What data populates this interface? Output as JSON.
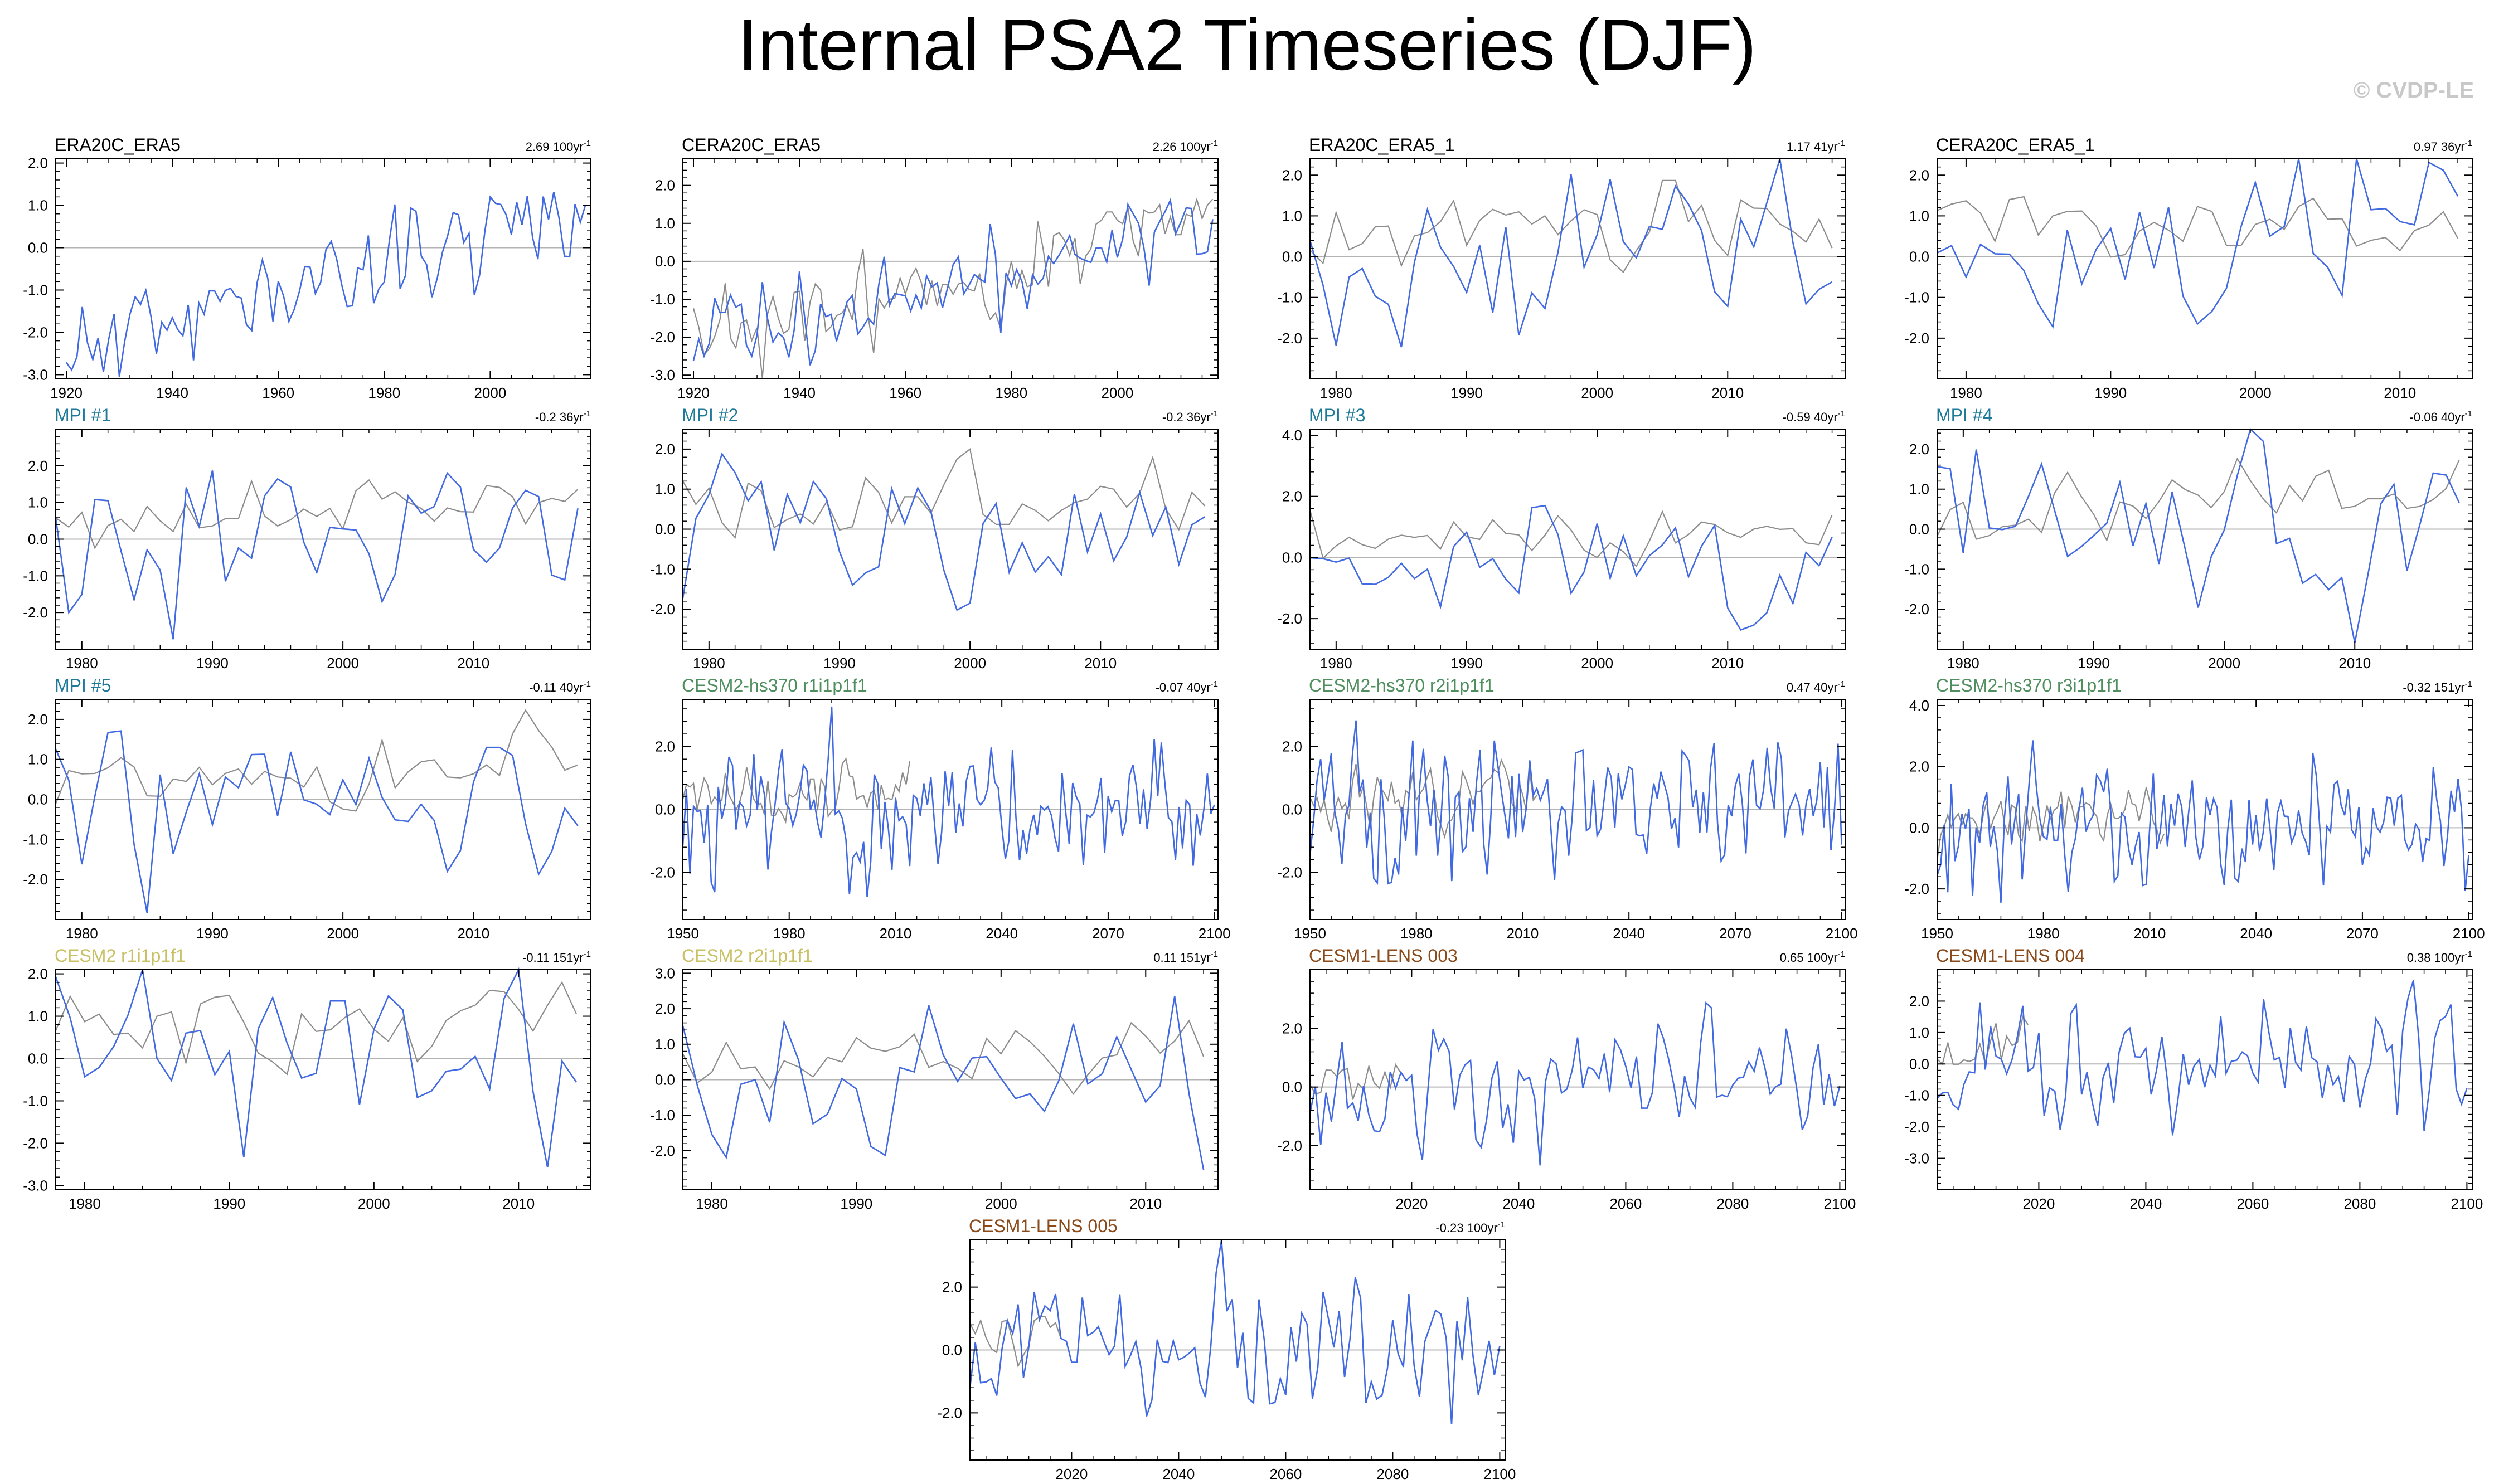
{
  "title": "Internal PSA2 Timeseries (DJF)",
  "watermark": "© CVDP-LE",
  "colors": {
    "member_line": "#4169e1",
    "obs_line": "#8c8c8c",
    "zero_line": "#b4b4b4",
    "obs_title": "#000000",
    "mpi_title": "#1f7a9a",
    "cesm2hs_title": "#4f8f5e",
    "cesm2_title": "#c8c063",
    "lens_title": "#8b4a1a"
  },
  "chart_data": [
    {
      "type": "line",
      "name": "ERA20C_ERA5",
      "title_color": "obs_title",
      "trend": "2.69 100yr",
      "xlim": [
        1918,
        2019
      ],
      "ylim": [
        -3.1,
        2.1
      ],
      "xticks": [
        1920,
        1940,
        1960,
        1980,
        2000
      ],
      "yticks": [
        -3.0,
        -2.0,
        -1.0,
        0.0,
        1.0,
        2.0
      ],
      "gray": null,
      "series_seed": 11,
      "blue_x": [
        1920,
        2018
      ],
      "blue_trend": [
        -2.5,
        1.1
      ],
      "blue_amp": 0.55
    },
    {
      "type": "line",
      "name": "CERA20C_ERA5",
      "title_color": "obs_title",
      "trend": "2.26 100yr",
      "xlim": [
        1918,
        2019
      ],
      "ylim": [
        -3.1,
        2.7
      ],
      "xticks": [
        1920,
        1940,
        1960,
        1980,
        2000
      ],
      "yticks": [
        -3.0,
        -2.0,
        -1.0,
        0.0,
        1.0,
        2.0
      ],
      "gray_x": [
        1920,
        2018
      ],
      "gray_trend": [
        -2.3,
        1.3
      ],
      "gray_amp": 0.55,
      "gray_seed": 23,
      "series_seed": 12,
      "blue_x": [
        1920,
        2018
      ],
      "blue_trend": [
        -2.2,
        1.1
      ],
      "blue_amp": 0.6
    },
    {
      "type": "line",
      "name": "ERA20C_ERA5_1",
      "title_color": "obs_title",
      "trend": "1.17 41yr",
      "xlim": [
        1978,
        2019
      ],
      "ylim": [
        -3.0,
        2.4
      ],
      "xticks": [
        1980,
        1990,
        2000,
        2010
      ],
      "yticks": [
        -2.0,
        -1.0,
        0.0,
        1.0,
        2.0
      ],
      "gray_x": [
        1978,
        2018
      ],
      "gray_trend": [
        0.4,
        1.0
      ],
      "gray_amp": 0.45,
      "gray_seed": 31,
      "series_seed": 13,
      "blue_x": [
        1978,
        2018
      ],
      "blue_trend": [
        -0.6,
        0.7
      ],
      "blue_amp": 1.0
    },
    {
      "type": "line",
      "name": "CERA20C_ERA5_1",
      "title_color": "obs_title",
      "trend": "0.97 36yr",
      "xlim": [
        1978,
        2015
      ],
      "ylim": [
        -3.0,
        2.4
      ],
      "xticks": [
        1980,
        1990,
        2000,
        2010
      ],
      "yticks": [
        -2.0,
        -1.0,
        0.0,
        1.0,
        2.0
      ],
      "gray_x": [
        1978,
        2014
      ],
      "gray_trend": [
        0.4,
        1.0
      ],
      "gray_amp": 0.45,
      "gray_seed": 37,
      "series_seed": 14,
      "blue_x": [
        1978,
        2014
      ],
      "blue_trend": [
        -0.6,
        0.6
      ],
      "blue_amp": 1.0
    },
    {
      "type": "line",
      "name": "MPI #1",
      "title_color": "mpi_title",
      "trend": "-0.2 36yr",
      "xlim": [
        1978,
        2019
      ],
      "ylim": [
        -3.0,
        3.0
      ],
      "xticks": [
        1980,
        1990,
        2000,
        2010
      ],
      "yticks": [
        -2.0,
        -1.0,
        0.0,
        1.0,
        2.0
      ],
      "gray_x": [
        1978,
        2018
      ],
      "gray_trend": [
        0.4,
        1.0
      ],
      "gray_amp": 0.45,
      "gray_seed": 41,
      "series_seed": 15,
      "blue_x": [
        1978,
        2018
      ],
      "blue_trend": [
        0.2,
        -0.1
      ],
      "blue_amp": 1.0
    },
    {
      "type": "line",
      "name": "MPI #2",
      "title_color": "mpi_title",
      "trend": "-0.2 36yr",
      "xlim": [
        1978,
        2019
      ],
      "ylim": [
        -3.0,
        2.5
      ],
      "xticks": [
        1980,
        1990,
        2000,
        2010
      ],
      "yticks": [
        -2.0,
        -1.0,
        0.0,
        1.0,
        2.0
      ],
      "gray_x": [
        1978,
        2018
      ],
      "gray_trend": [
        0.4,
        1.0
      ],
      "gray_amp": 0.45,
      "gray_seed": 43,
      "series_seed": 16,
      "blue_x": [
        1978,
        2018
      ],
      "blue_trend": [
        0.2,
        -0.1
      ],
      "blue_amp": 1.0
    },
    {
      "type": "line",
      "name": "MPI #3",
      "title_color": "mpi_title",
      "trend": "-0.59 40yr",
      "xlim": [
        1978,
        2019
      ],
      "ylim": [
        -3.0,
        4.2
      ],
      "xticks": [
        1980,
        1990,
        2000,
        2010
      ],
      "yticks": [
        -2.0,
        0.0,
        2.0,
        4.0
      ],
      "gray_x": [
        1978,
        2018
      ],
      "gray_trend": [
        0.4,
        1.0
      ],
      "gray_amp": 0.45,
      "gray_seed": 47,
      "series_seed": 17,
      "blue_x": [
        1978,
        2018
      ],
      "blue_trend": [
        0.2,
        -0.4
      ],
      "blue_amp": 0.9
    },
    {
      "type": "line",
      "name": "MPI #4",
      "title_color": "mpi_title",
      "trend": "-0.06 40yr",
      "xlim": [
        1978,
        2019
      ],
      "ylim": [
        -3.0,
        2.5
      ],
      "xticks": [
        1980,
        1990,
        2000,
        2010
      ],
      "yticks": [
        -2.0,
        -1.0,
        0.0,
        1.0,
        2.0
      ],
      "gray_x": [
        1978,
        2018
      ],
      "gray_trend": [
        0.4,
        1.0
      ],
      "gray_amp": 0.45,
      "gray_seed": 53,
      "series_seed": 18,
      "blue_x": [
        1978,
        2018
      ],
      "blue_trend": [
        0.1,
        0.0
      ],
      "blue_amp": 1.0
    },
    {
      "type": "line",
      "name": "MPI #5",
      "title_color": "mpi_title",
      "trend": "-0.11 40yr",
      "xlim": [
        1978,
        2019
      ],
      "ylim": [
        -3.0,
        2.5
      ],
      "xticks": [
        1980,
        1990,
        2000,
        2010
      ],
      "yticks": [
        -2.0,
        -1.0,
        0.0,
        1.0,
        2.0
      ],
      "gray_x": [
        1978,
        2018
      ],
      "gray_trend": [
        0.4,
        1.0
      ],
      "gray_amp": 0.45,
      "gray_seed": 59,
      "series_seed": 19,
      "blue_x": [
        1978,
        2018
      ],
      "blue_trend": [
        0.1,
        -0.1
      ],
      "blue_amp": 1.0
    },
    {
      "type": "line",
      "name": "CESM2-hs370 r1i1p1f1",
      "title_color": "cesm2hs_title",
      "trend": "-0.07 40yr",
      "xlim": [
        1950,
        2101
      ],
      "ylim": [
        -3.5,
        3.5
      ],
      "xticks": [
        1950,
        1980,
        2010,
        2040,
        2070,
        2100
      ],
      "yticks": [
        -2.0,
        0.0,
        2.0
      ],
      "gray_x": [
        1950,
        2014
      ],
      "gray_trend": [
        0.2,
        0.6
      ],
      "gray_amp": 0.45,
      "gray_seed": 61,
      "series_seed": 20,
      "blue_x": [
        1950,
        2100
      ],
      "blue_trend": [
        0.0,
        0.0
      ],
      "blue_amp": 1.0
    },
    {
      "type": "line",
      "name": "CESM2-hs370 r2i1p1f1",
      "title_color": "cesm2hs_title",
      "trend": "0.47 40yr",
      "xlim": [
        1950,
        2101
      ],
      "ylim": [
        -3.5,
        3.5
      ],
      "xticks": [
        1950,
        1980,
        2010,
        2040,
        2070,
        2100
      ],
      "yticks": [
        -2.0,
        0.0,
        2.0
      ],
      "gray_x": [
        1950,
        2014
      ],
      "gray_trend": [
        0.2,
        0.8
      ],
      "gray_amp": 0.45,
      "gray_seed": 67,
      "series_seed": 21,
      "blue_x": [
        1950,
        2100
      ],
      "blue_trend": [
        0.0,
        0.1
      ],
      "blue_amp": 1.0
    },
    {
      "type": "line",
      "name": "CESM2-hs370 r3i1p1f1",
      "title_color": "cesm2hs_title",
      "trend": "-0.32 151yr",
      "xlim": [
        1950,
        2101
      ],
      "ylim": [
        -3.0,
        4.2
      ],
      "xticks": [
        1950,
        1980,
        2010,
        2040,
        2070,
        2100
      ],
      "yticks": [
        -2.0,
        0.0,
        2.0,
        4.0
      ],
      "gray_x": [
        1950,
        2014
      ],
      "gray_trend": [
        0.2,
        0.6
      ],
      "gray_amp": 0.45,
      "gray_seed": 71,
      "series_seed": 22,
      "blue_x": [
        1950,
        2100
      ],
      "blue_trend": [
        0.2,
        -0.2
      ],
      "blue_amp": 1.0
    },
    {
      "type": "line",
      "name": "CESM2 r1i1p1f1",
      "title_color": "cesm2_title",
      "trend": "-0.11 151yr",
      "xlim": [
        1978,
        2015
      ],
      "ylim": [
        -3.1,
        2.1
      ],
      "xticks": [
        1980,
        1990,
        2000,
        2010
      ],
      "yticks": [
        -3.0,
        -2.0,
        -1.0,
        0.0,
        1.0,
        2.0
      ],
      "gray_x": [
        1978,
        2014
      ],
      "gray_trend": [
        0.4,
        1.0
      ],
      "gray_amp": 0.45,
      "gray_seed": 73,
      "series_seed": 23,
      "blue_x": [
        1978,
        2014
      ],
      "blue_trend": [
        0.0,
        -0.1
      ],
      "blue_amp": 1.0
    },
    {
      "type": "line",
      "name": "CESM2 r2i1p1f1",
      "title_color": "cesm2_title",
      "trend": "0.11 151yr",
      "xlim": [
        1978,
        2015
      ],
      "ylim": [
        -3.1,
        3.1
      ],
      "xticks": [
        1980,
        1990,
        2000,
        2010
      ],
      "yticks": [
        -2.0,
        -1.0,
        0.0,
        1.0,
        2.0,
        3.0
      ],
      "gray_x": [
        1978,
        2014
      ],
      "gray_trend": [
        0.4,
        1.0
      ],
      "gray_amp": 0.45,
      "gray_seed": 79,
      "series_seed": 24,
      "blue_x": [
        1978,
        2014
      ],
      "blue_trend": [
        -0.1,
        0.1
      ],
      "blue_amp": 1.0
    },
    {
      "type": "line",
      "name": "CESM1-LENS 003",
      "title_color": "lens_title",
      "trend": "0.65 100yr",
      "xlim": [
        2001,
        2101
      ],
      "ylim": [
        -3.5,
        4.0
      ],
      "xticks": [
        2020,
        2040,
        2060,
        2080,
        2100
      ],
      "yticks": [
        -2.0,
        0.0,
        2.0
      ],
      "gray_x": [
        2001,
        2018
      ],
      "gray_trend": [
        0.3,
        0.8
      ],
      "gray_amp": 0.45,
      "gray_seed": 83,
      "series_seed": 25,
      "blue_x": [
        2001,
        2100
      ],
      "blue_trend": [
        -0.2,
        0.4
      ],
      "blue_amp": 1.0
    },
    {
      "type": "line",
      "name": "CESM1-LENS 004",
      "title_color": "lens_title",
      "trend": "0.38 100yr",
      "xlim": [
        2001,
        2101
      ],
      "ylim": [
        -4.0,
        3.0
      ],
      "xticks": [
        2020,
        2040,
        2060,
        2080,
        2100
      ],
      "yticks": [
        -3.0,
        -2.0,
        -1.0,
        0.0,
        1.0,
        2.0
      ],
      "gray_x": [
        2001,
        2018
      ],
      "gray_trend": [
        0.3,
        0.8
      ],
      "gray_amp": 0.45,
      "gray_seed": 89,
      "series_seed": 26,
      "blue_x": [
        2001,
        2100
      ],
      "blue_trend": [
        -0.1,
        0.3
      ],
      "blue_amp": 1.0
    },
    {
      "type": "line",
      "name": "CESM1-LENS 005",
      "title_color": "lens_title",
      "trend": "-0.23 100yr",
      "xlim": [
        2001,
        2101
      ],
      "ylim": [
        -3.5,
        3.5
      ],
      "xticks": [
        2020,
        2040,
        2060,
        2080,
        2100
      ],
      "yticks": [
        -2.0,
        0.0,
        2.0
      ],
      "gray_x": [
        2001,
        2018
      ],
      "gray_trend": [
        0.3,
        0.8
      ],
      "gray_amp": 0.45,
      "gray_seed": 97,
      "series_seed": 27,
      "blue_x": [
        2001,
        2100
      ],
      "blue_trend": [
        0.1,
        -0.1
      ],
      "blue_amp": 1.0
    }
  ]
}
